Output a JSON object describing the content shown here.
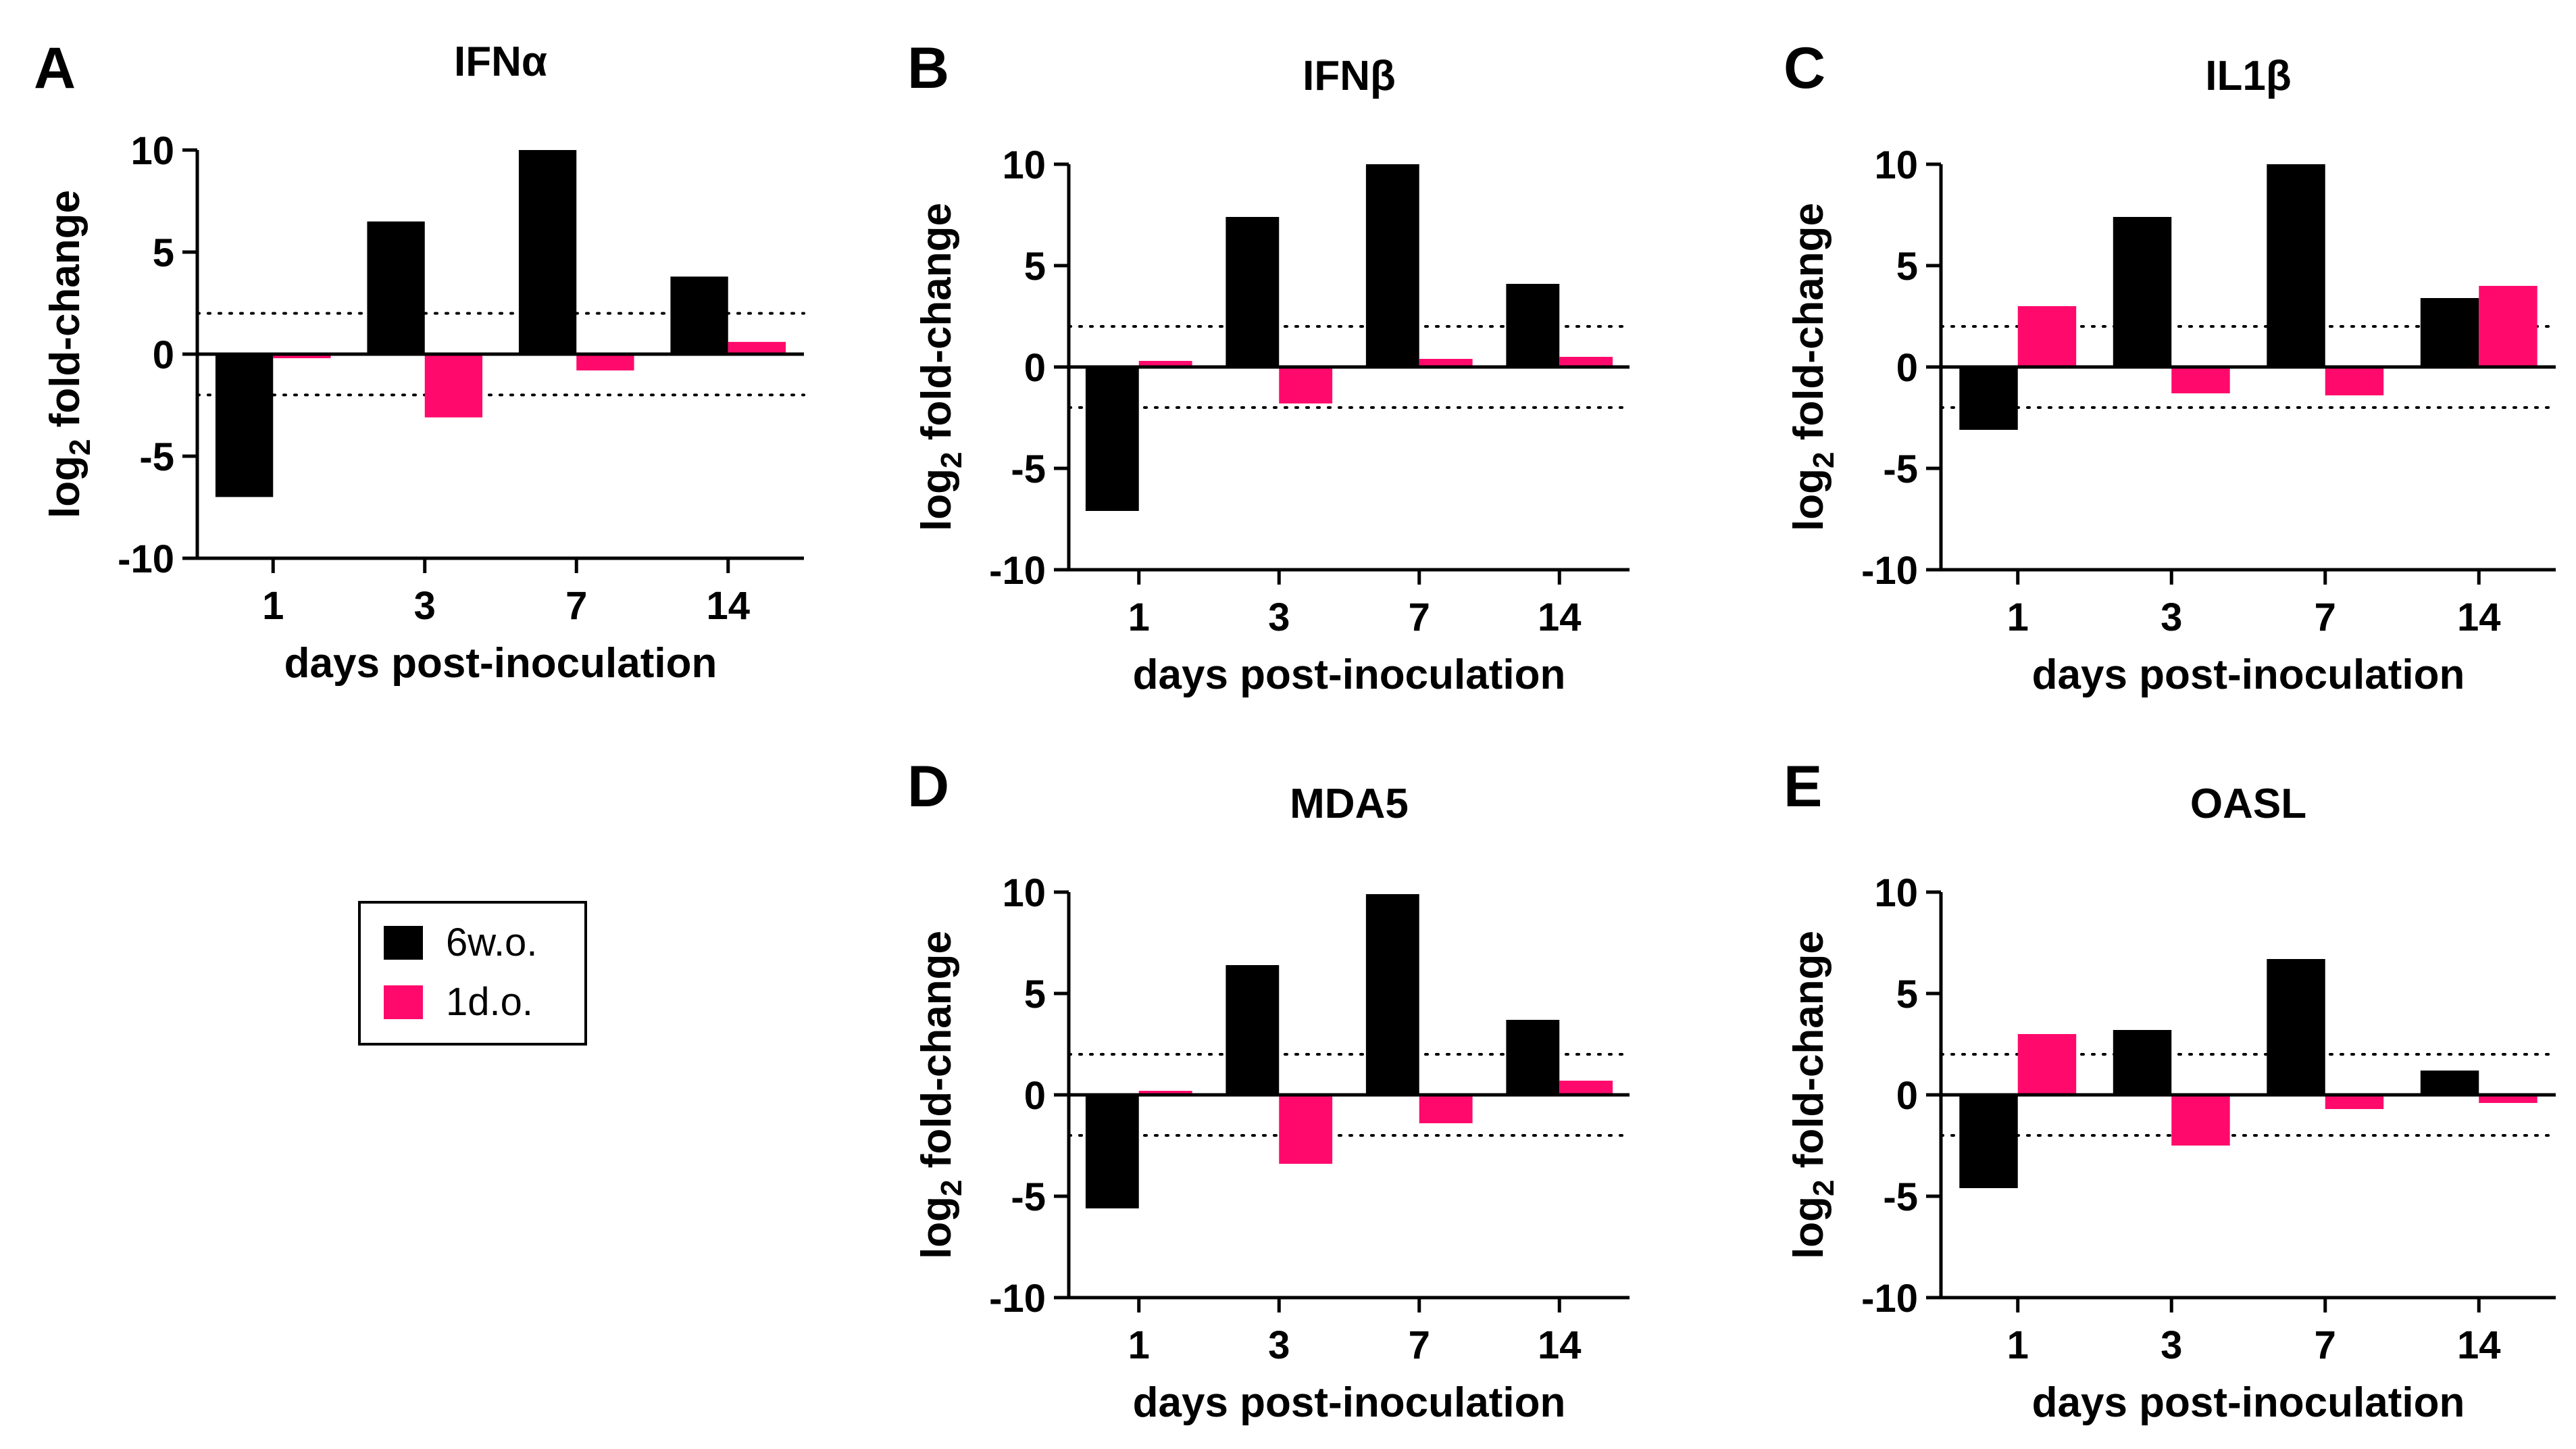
{
  "legend": {
    "entries": [
      {
        "label": "6w.o.",
        "color": "#000000"
      },
      {
        "label": "1d.o.",
        "color": "#ff0a6c"
      }
    ]
  },
  "chart_data": [
    {
      "type": "bar",
      "panel": "A",
      "title": "IFNα",
      "categories": [
        "1",
        "3",
        "7",
        "14"
      ],
      "series": [
        {
          "name": "6w.o.",
          "color": "#000000",
          "values": [
            -7.0,
            6.5,
            10.0,
            3.8
          ]
        },
        {
          "name": "1d.o.",
          "color": "#ff0a6c",
          "values": [
            -0.2,
            -3.1,
            -0.8,
            0.6
          ]
        }
      ],
      "ylabel_main": "log",
      "ylabel_sub": "2",
      "ylabel_rest": " fold-change",
      "xlabel": "days post-inoculation",
      "ylim": [
        -10,
        10
      ],
      "yticks": [
        "10",
        "5",
        "0",
        "-5",
        "-10"
      ],
      "thresholds": [
        2,
        -2
      ]
    },
    {
      "type": "bar",
      "panel": "B",
      "title": "IFNβ",
      "categories": [
        "1",
        "3",
        "7",
        "14"
      ],
      "series": [
        {
          "name": "6w.o.",
          "color": "#000000",
          "values": [
            -7.1,
            7.4,
            10.0,
            4.1
          ]
        },
        {
          "name": "1d.o.",
          "color": "#ff0a6c",
          "values": [
            0.3,
            -1.8,
            0.4,
            0.5
          ]
        }
      ],
      "ylabel_main": "log",
      "ylabel_sub": "2",
      "ylabel_rest": " fold-change",
      "xlabel": "days post-inoculation",
      "ylim": [
        -10,
        10
      ],
      "yticks": [
        "10",
        "5",
        "0",
        "-5",
        "-10"
      ],
      "thresholds": [
        2,
        -2
      ]
    },
    {
      "type": "bar",
      "panel": "C",
      "title": "IL1β",
      "categories": [
        "1",
        "3",
        "7",
        "14"
      ],
      "series": [
        {
          "name": "6w.o.",
          "color": "#000000",
          "values": [
            -3.1,
            7.4,
            10.0,
            3.4
          ]
        },
        {
          "name": "1d.o.",
          "color": "#ff0a6c",
          "values": [
            3.0,
            -1.3,
            -1.4,
            4.0
          ]
        }
      ],
      "ylabel_main": "log",
      "ylabel_sub": "2",
      "ylabel_rest": " fold-change",
      "xlabel": "days post-inoculation",
      "ylim": [
        -10,
        10
      ],
      "yticks": [
        "10",
        "5",
        "0",
        "-5",
        "-10"
      ],
      "thresholds": [
        2,
        -2
      ]
    },
    {
      "type": "bar",
      "panel": "D",
      "title": "MDA5",
      "categories": [
        "1",
        "3",
        "7",
        "14"
      ],
      "series": [
        {
          "name": "6w.o.",
          "color": "#000000",
          "values": [
            -5.6,
            6.4,
            9.9,
            3.7
          ]
        },
        {
          "name": "1d.o.",
          "color": "#ff0a6c",
          "values": [
            0.2,
            -3.4,
            -1.4,
            0.7
          ]
        }
      ],
      "ylabel_main": "log",
      "ylabel_sub": "2",
      "ylabel_rest": " fold-change",
      "xlabel": "days post-inoculation",
      "ylim": [
        -10,
        10
      ],
      "yticks": [
        "10",
        "5",
        "0",
        "-5",
        "-10"
      ],
      "thresholds": [
        2,
        -2
      ]
    },
    {
      "type": "bar",
      "panel": "E",
      "title": "OASL",
      "categories": [
        "1",
        "3",
        "7",
        "14"
      ],
      "series": [
        {
          "name": "6w.o.",
          "color": "#000000",
          "values": [
            -4.6,
            3.2,
            6.7,
            1.2
          ]
        },
        {
          "name": "1d.o.",
          "color": "#ff0a6c",
          "values": [
            3.0,
            -2.5,
            -0.7,
            -0.4
          ]
        }
      ],
      "ylabel_main": "log",
      "ylabel_sub": "2",
      "ylabel_rest": " fold-change",
      "xlabel": "days post-inoculation",
      "ylim": [
        -10,
        10
      ],
      "yticks": [
        "10",
        "5",
        "0",
        "-5",
        "-10"
      ],
      "thresholds": [
        2,
        -2
      ]
    }
  ]
}
